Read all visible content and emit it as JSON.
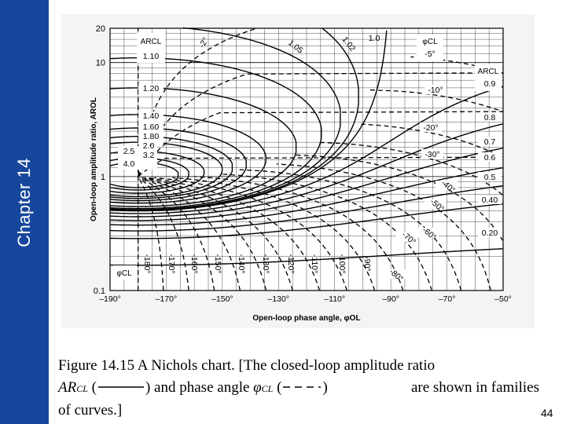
{
  "sidebar": {
    "label": "Chapter 14"
  },
  "chart_data": {
    "type": "line",
    "xlabel": "Open-loop phase angle, φOL",
    "ylabel": "Open-loop amplitude ratio, AROL",
    "x_ticks": [
      "–190°",
      "–170°",
      "–150°",
      "–130°",
      "–110°",
      "–90°",
      "–70°",
      "–50°"
    ],
    "y_ticks": [
      "20",
      "10",
      "1",
      "0.1"
    ],
    "xlim": [
      -190,
      -50
    ],
    "ylim": [
      0.1,
      20
    ],
    "y_scale": "log",
    "grid": true,
    "ar_cl_header": "ARCL",
    "phi_cl_header": "φCL",
    "ar_cl_left": [
      "1.10",
      "1.20",
      "1.40",
      "1.60",
      "1.80",
      "2.0",
      "2.5",
      "3.2",
      "4.0"
    ],
    "ar_cl_right": [
      "0.9",
      "0.8",
      "0.7",
      "0.6",
      "0.5",
      "0.40",
      "0.20"
    ],
    "ar_cl_top": [
      "1.05",
      "1.02",
      "1.0"
    ],
    "phi_cl_right": [
      "-5°",
      "-10°",
      "-20°",
      "-30°",
      "-40°",
      "-50°",
      "-60°",
      "-70°",
      "-80°"
    ],
    "phi_cl_top": [
      "-2°"
    ],
    "phi_cl_bottom": [
      "-180°",
      "-170°",
      "-160°",
      "-150°",
      "-140°",
      "-130°",
      "-120°",
      "-110°",
      "-100°",
      "-90°"
    ]
  },
  "caption": {
    "line1": "Figure 14.15 A Nichols chart. [The closed-loop amplitude ratio",
    "ar_label": "AR",
    "ar_sub": "CL",
    "open_paren": "(",
    "close_paren_and": ") and phase angle",
    "phi_label": "φ",
    "phi_sub": "CL",
    "legend_open": "(",
    "legend_close": ")",
    "line2_end": "are shown in families",
    "line3": "of curves.]"
  },
  "slide_number": "44"
}
